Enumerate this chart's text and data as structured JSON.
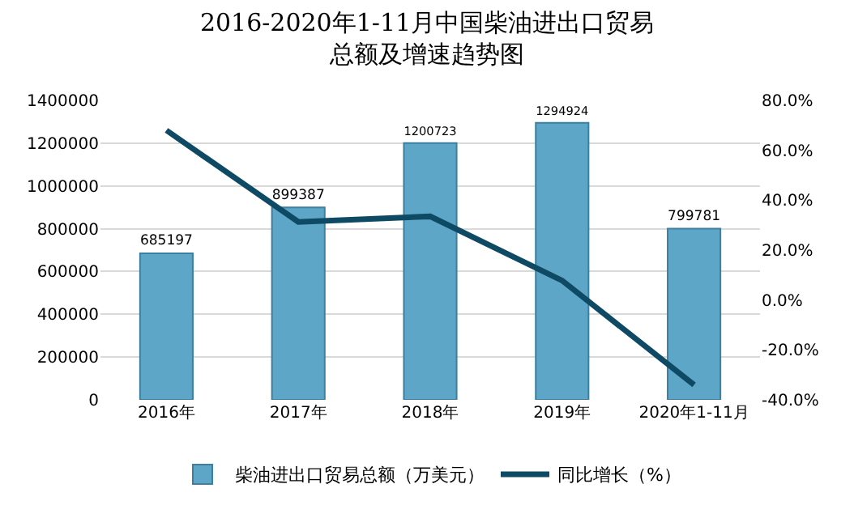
{
  "chart_data": {
    "type": "bar",
    "title": "2016-2020年1-11月中国柴油进出口贸易总额及增速趋势图",
    "categories": [
      "2016年",
      "2017年",
      "2018年",
      "2019年",
      "2020年1-11月"
    ],
    "series": [
      {
        "name": "柴油进出口贸易总额（万美元）",
        "color": "#5ea6c8",
        "values": [
          685197,
          899387,
          1200723,
          1294924,
          799781
        ],
        "data_labels": true
      },
      {
        "name": "同比增长（%）",
        "type": "line",
        "axis": "y2",
        "color": "#0e4a63",
        "values": [
          68,
          31.3,
          33.5,
          7.8,
          -34
        ],
        "marker": "none"
      }
    ],
    "ylim": [
      0,
      1400000
    ],
    "yticks": [
      0,
      200000,
      400000,
      600000,
      800000,
      1000000,
      1200000,
      1400000
    ],
    "y2lim": [
      -40,
      80
    ],
    "y2ticks": [
      {
        "value": -40,
        "label": "-40.0%"
      },
      {
        "value": -20,
        "label": "-20.0%"
      },
      {
        "value": 0,
        "label": "0.0%"
      },
      {
        "value": 20,
        "label": "20.0%"
      },
      {
        "value": 40,
        "label": "40.0%"
      },
      {
        "value": 60,
        "label": "60.0%"
      },
      {
        "value": 80,
        "label": "80.0%"
      }
    ],
    "grid": "y",
    "legend": "bottom"
  }
}
